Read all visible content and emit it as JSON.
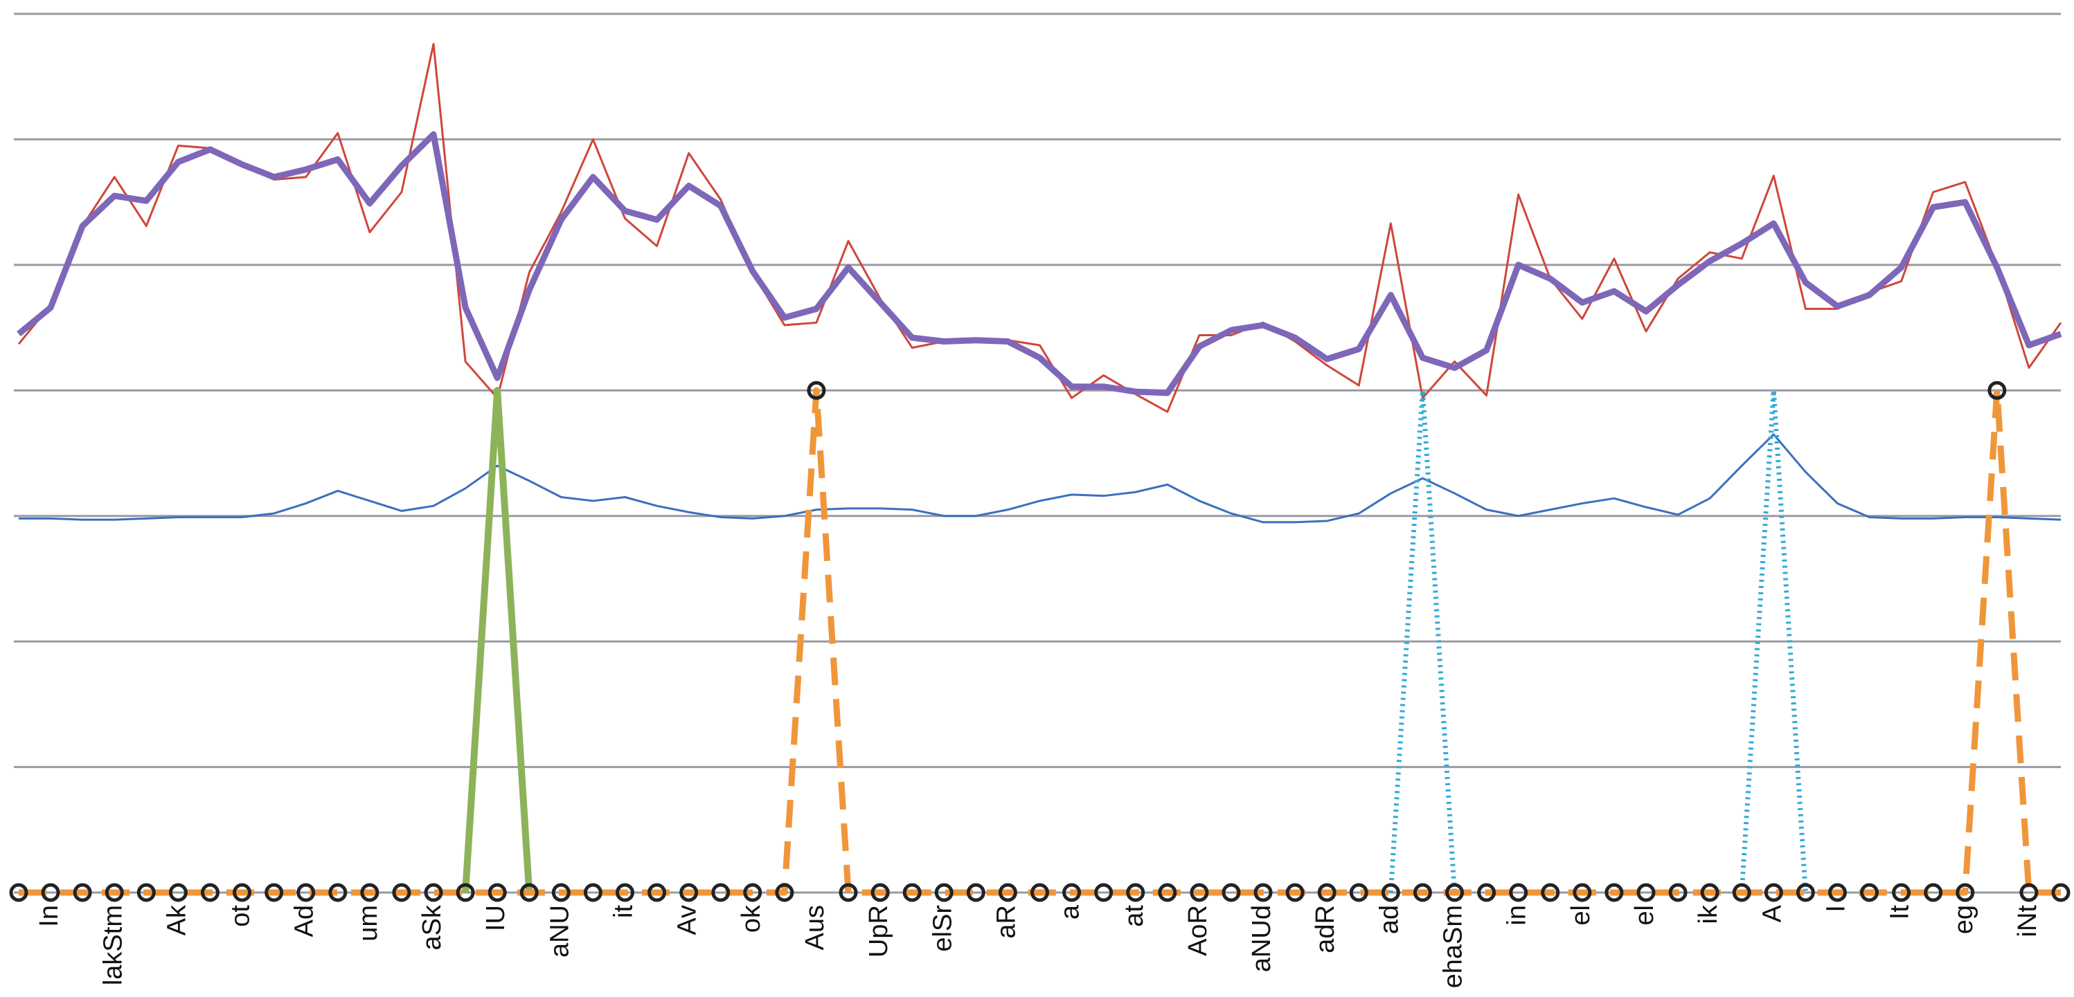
{
  "chart_data": {
    "type": "line",
    "categories": [
      null,
      "In",
      null,
      "lakStm",
      null,
      "Ak",
      null,
      "ot",
      null,
      "Ad",
      null,
      "um",
      null,
      "aSk",
      null,
      "IU",
      null,
      "aNU",
      null,
      "it",
      null,
      "Av",
      null,
      "ok",
      null,
      "Aus",
      null,
      "UpR",
      null,
      "elSr",
      null,
      "aR",
      null,
      "a",
      null,
      "at",
      null,
      "AoR",
      null,
      "aNUd",
      null,
      "adR",
      null,
      "ad",
      null,
      "ehaSm",
      null,
      "in",
      null,
      "el",
      null,
      "el",
      null,
      "ik",
      null,
      "A",
      null,
      "I",
      null,
      "It",
      null,
      "eg",
      null,
      "iNt",
      null
    ],
    "ylim": [
      0,
      7
    ],
    "yticks": [
      0,
      1,
      2,
      3,
      4,
      5,
      6,
      7
    ],
    "grid": true,
    "series": [
      {
        "name": "red",
        "color": "#d0463a",
        "width": 3,
        "dash": "none",
        "values": [
          4.37,
          4.68,
          5.31,
          5.7,
          5.31,
          5.95,
          5.93,
          5.79,
          5.68,
          5.7,
          6.05,
          5.26,
          5.58,
          6.76,
          4.23,
          3.94,
          4.94,
          5.42,
          6.0,
          5.37,
          5.15,
          5.89,
          5.52,
          4.94,
          4.52,
          4.54,
          5.19,
          4.73,
          4.34,
          4.39,
          4.41,
          4.4,
          4.36,
          3.94,
          4.12,
          3.97,
          3.83,
          4.44,
          4.44,
          4.54,
          4.39,
          4.2,
          4.04,
          5.33,
          3.94,
          4.23,
          3.96,
          5.56,
          4.89,
          4.57,
          5.05,
          4.47,
          4.89,
          5.1,
          5.05,
          5.71,
          4.65,
          4.65,
          4.78,
          4.87,
          5.58,
          5.66,
          4.99,
          4.18,
          4.54
        ]
      },
      {
        "name": "purple",
        "color": "#7e67b8",
        "width": 9,
        "dash": "none",
        "values": [
          4.45,
          4.66,
          5.31,
          5.55,
          5.51,
          5.82,
          5.92,
          5.8,
          5.7,
          5.76,
          5.84,
          5.49,
          5.79,
          6.04,
          4.66,
          4.1,
          4.8,
          5.36,
          5.7,
          5.43,
          5.36,
          5.63,
          5.47,
          4.95,
          4.58,
          4.65,
          4.98,
          4.7,
          4.42,
          4.39,
          4.4,
          4.39,
          4.26,
          4.03,
          4.03,
          3.99,
          3.98,
          4.35,
          4.48,
          4.52,
          4.42,
          4.25,
          4.33,
          4.76,
          4.26,
          4.18,
          4.32,
          5.0,
          4.89,
          4.7,
          4.79,
          4.63,
          4.84,
          5.03,
          5.17,
          5.33,
          4.86,
          4.67,
          4.76,
          4.98,
          5.46,
          5.5,
          4.98,
          4.36,
          4.45
        ]
      },
      {
        "name": "blue",
        "color": "#3a6fc0",
        "width": 3,
        "dash": "none",
        "values": [
          2.98,
          2.98,
          2.97,
          2.97,
          2.98,
          2.99,
          2.99,
          2.99,
          3.02,
          3.1,
          3.2,
          3.12,
          3.04,
          3.08,
          3.22,
          3.4,
          3.28,
          3.15,
          3.12,
          3.15,
          3.08,
          3.03,
          2.99,
          2.98,
          3.0,
          3.05,
          3.06,
          3.06,
          3.05,
          3.0,
          3.0,
          3.05,
          3.12,
          3.17,
          3.16,
          3.19,
          3.25,
          3.12,
          3.02,
          2.95,
          2.95,
          2.96,
          3.02,
          3.18,
          3.3,
          3.18,
          3.05,
          3.0,
          3.05,
          3.1,
          3.14,
          3.07,
          3.01,
          3.14,
          3.4,
          3.65,
          3.35,
          3.1,
          2.99,
          2.98,
          2.98,
          2.99,
          2.99,
          2.98,
          2.97
        ]
      },
      {
        "name": "green",
        "color": "#8db35a",
        "width": 10,
        "dash": "none",
        "values": [
          null,
          null,
          null,
          null,
          null,
          null,
          null,
          null,
          null,
          null,
          null,
          null,
          null,
          null,
          0,
          4,
          0,
          null,
          null,
          null,
          null,
          null,
          null,
          null,
          null,
          null,
          null,
          null,
          null,
          null,
          null,
          null,
          null,
          null,
          null,
          null,
          null,
          null,
          null,
          null,
          null,
          null,
          null,
          null,
          null,
          null,
          null,
          null,
          null,
          null,
          null,
          null,
          null,
          null,
          null,
          null,
          null,
          null,
          null,
          null,
          null,
          null,
          null,
          null,
          null
        ]
      },
      {
        "name": "cyan",
        "color": "#34a9d8",
        "width": 7,
        "dash": "3 6",
        "values": [
          null,
          null,
          null,
          null,
          null,
          null,
          null,
          null,
          null,
          null,
          null,
          null,
          null,
          null,
          null,
          null,
          null,
          null,
          null,
          null,
          null,
          null,
          null,
          null,
          null,
          null,
          null,
          null,
          null,
          null,
          null,
          null,
          null,
          null,
          null,
          null,
          null,
          null,
          null,
          null,
          null,
          null,
          null,
          0,
          4,
          0,
          null,
          null,
          null,
          null,
          null,
          null,
          null,
          null,
          0,
          4,
          0,
          null,
          null,
          null,
          null,
          null,
          null,
          null,
          null
        ]
      },
      {
        "name": "orange",
        "color": "#f0963a",
        "width": 9,
        "dash": "40 20",
        "markers": true,
        "values": [
          0,
          0,
          0,
          0,
          0,
          0,
          0,
          0,
          0,
          0,
          0,
          0,
          0,
          0,
          0,
          0,
          0,
          0,
          0,
          0,
          0,
          0,
          0,
          0,
          0,
          4,
          0,
          0,
          0,
          0,
          0,
          0,
          0,
          0,
          0,
          0,
          0,
          0,
          0,
          0,
          0,
          0,
          0,
          0,
          0,
          0,
          0,
          0,
          0,
          0,
          0,
          0,
          0,
          0,
          0,
          0,
          0,
          0,
          0,
          0,
          0,
          0,
          4,
          0,
          0
        ]
      }
    ]
  }
}
